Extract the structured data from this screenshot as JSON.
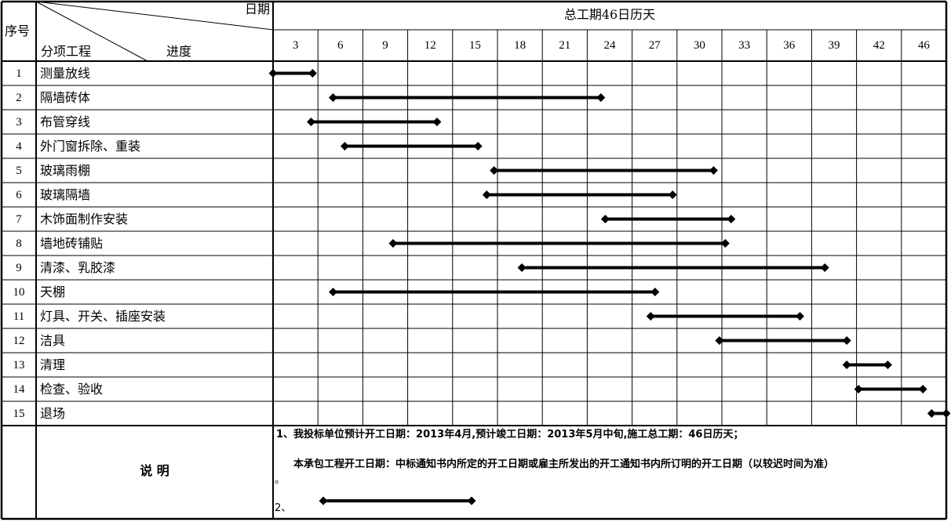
{
  "header": {
    "seq_label": "序号",
    "date_label": "日期",
    "item_label": "分项工程",
    "progress_label": "进度",
    "total_period_label": "总工期46日历天"
  },
  "chart_data": {
    "type": "gantt",
    "title": "总工期46日历天",
    "x_ticks": [
      "3",
      "6",
      "9",
      "12",
      "15",
      "18",
      "21",
      "24",
      "27",
      "30",
      "33",
      "36",
      "39",
      "42",
      "46"
    ],
    "xlim": [
      0,
      46
    ],
    "grid": true,
    "tasks": [
      {
        "no": "1",
        "name": "测量放线",
        "start": 0,
        "end": 2.7
      },
      {
        "no": "2",
        "name": "隔墙砖体",
        "start": 4.1,
        "end": 22.4
      },
      {
        "no": "3",
        "name": "布管穿线",
        "start": 2.6,
        "end": 11.2
      },
      {
        "no": "4",
        "name": "外门窗拆除、重装",
        "start": 4.9,
        "end": 14.0
      },
      {
        "no": "5",
        "name": "玻璃雨棚",
        "start": 15.1,
        "end": 30.1
      },
      {
        "no": "6",
        "name": "玻璃隔墙",
        "start": 14.6,
        "end": 27.3
      },
      {
        "no": "7",
        "name": "木饰面制作安装",
        "start": 22.7,
        "end": 31.3
      },
      {
        "no": "8",
        "name": "墙地砖铺贴",
        "start": 8.2,
        "end": 30.9
      },
      {
        "no": "9",
        "name": "清漆、乳胶漆",
        "start": 17.0,
        "end": 37.7
      },
      {
        "no": "10",
        "name": "天棚",
        "start": 4.1,
        "end": 26.1
      },
      {
        "no": "11",
        "name": "灯具、开关、插座安装",
        "start": 25.8,
        "end": 36.0
      },
      {
        "no": "12",
        "name": "洁具",
        "start": 30.5,
        "end": 39.2
      },
      {
        "no": "13",
        "name": "清理",
        "start": 39.2,
        "end": 42.0
      },
      {
        "no": "14",
        "name": "检查、验收",
        "start": 40.0,
        "end": 44.4
      },
      {
        "no": "15",
        "name": "退场",
        "start": 45.0,
        "end": 46.0
      }
    ]
  },
  "notes": {
    "label": "说 明",
    "line1": "1、我投标单位预计开工日期：2013年4月,预计竣工日期：2013年5月中旬,施工总工期：46日历天；",
    "line2": "本承包工程开工日期：中标通知书内所定的开工日期或雇主所发出的开工通知书内所订明的开工日期（以较迟时间为准）",
    "line2_end": "。",
    "line3_prefix": "2、"
  },
  "colors": {
    "line": "#000000",
    "background": "#ffffff"
  }
}
